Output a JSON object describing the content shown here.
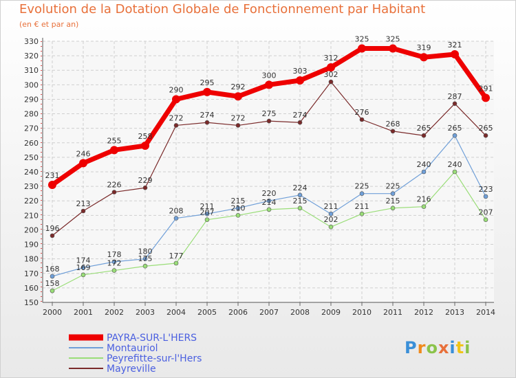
{
  "chart_data": {
    "type": "line",
    "title": "Evolution de la Dotation Globale de Fonctionnement par Habitant",
    "subtitle": "(en € et par an)",
    "categories": [
      "2000",
      "2001",
      "2002",
      "2003",
      "2004",
      "2005",
      "2006",
      "2007",
      "2008",
      "2009",
      "2010",
      "2011",
      "2012",
      "2013",
      "2014"
    ],
    "ylim": [
      150,
      330
    ],
    "ytick_step": 10,
    "grid": true,
    "legend_position": "bottom-left",
    "series": [
      {
        "name": "PAYRA-SUR-L'HERS",
        "color": "#ee0000",
        "values": [
          231,
          246,
          255,
          258,
          290,
          295,
          292,
          300,
          303,
          312,
          325,
          325,
          319,
          321,
          291
        ]
      },
      {
        "name": "Montauriol",
        "color": "#6f9fd8",
        "values": [
          168,
          174,
          178,
          180,
          208,
          211,
          215,
          220,
          224,
          211,
          225,
          225,
          240,
          265,
          223
        ]
      },
      {
        "name": "Peyrefitte-sur-l'Hers",
        "color": "#99dd77",
        "values": [
          158,
          169,
          172,
          175,
          177,
          207,
          210,
          214,
          215,
          202,
          211,
          215,
          216,
          240,
          207
        ]
      },
      {
        "name": "Mayreville",
        "color": "#7a2a2a",
        "values": [
          196,
          213,
          226,
          229,
          272,
          274,
          272,
          275,
          274,
          302,
          276,
          268,
          265,
          287,
          265
        ]
      }
    ]
  },
  "logo": {
    "text": "Proxiti"
  }
}
